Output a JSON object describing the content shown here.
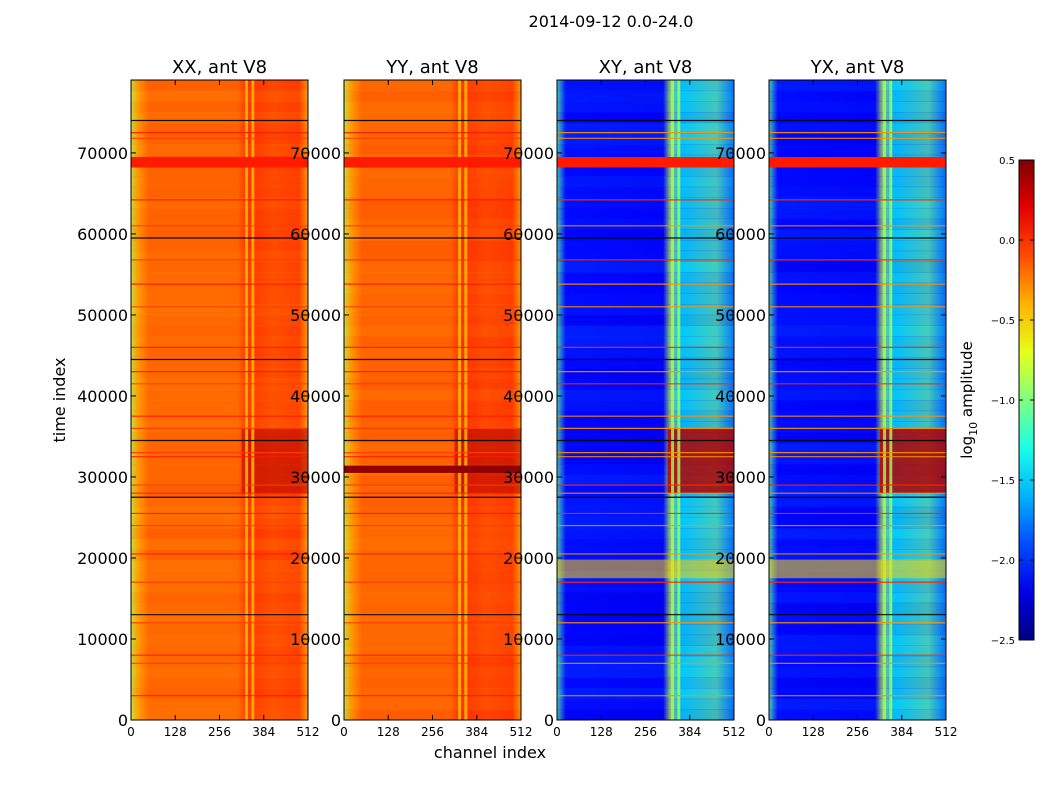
{
  "chart_data": {
    "type": "heatmap",
    "suptitle": "2014-09-12 0.0-24.0",
    "xlabel": "channel index",
    "ylabel": "time index",
    "xlim": [
      0,
      512
    ],
    "ylim": [
      0,
      79000
    ],
    "x_ticks": [
      0,
      128,
      256,
      384,
      512
    ],
    "y_ticks": [
      0,
      10000,
      20000,
      30000,
      40000,
      50000,
      60000,
      70000
    ],
    "panels": [
      {
        "title": "XX, ant V8",
        "base_level": -0.25
      },
      {
        "title": "YY, ant V8",
        "base_level": -0.22
      },
      {
        "title": "XY, ant V8",
        "base_level": -2.05
      },
      {
        "title": "YX, ant V8",
        "base_level": -2.05
      }
    ],
    "colorbar": {
      "label_prefix": "log",
      "label_sub": "10",
      "label_suffix": " amplitude",
      "min": -2.5,
      "max": 0.5,
      "colormap": "jet",
      "ticks": [
        {
          "value": 0.5,
          "label": "0.5"
        },
        {
          "value": 0.0,
          "label": "0.0"
        },
        {
          "value": -0.5,
          "label": "−0.5"
        },
        {
          "value": -1.0,
          "label": "−1.0"
        },
        {
          "value": -1.5,
          "label": "−1.5"
        },
        {
          "value": -2.0,
          "label": "−2.0"
        },
        {
          "value": -2.5,
          "label": "−2.5"
        }
      ]
    },
    "features": {
      "flagged_bands": [
        {
          "t0": 68200,
          "t1": 69500,
          "level": 0.05
        },
        {
          "t0": 30500,
          "t1": 31400,
          "level": 0.45,
          "panels": [
            1
          ]
        },
        {
          "t0": 17500,
          "t1": 19800,
          "level": -0.5,
          "panels": [
            2,
            3
          ]
        }
      ],
      "rfi_lines_time": [
        74000,
        72500,
        71800,
        64200,
        61000,
        59500,
        56800,
        53800,
        51000,
        46000,
        44500,
        43000,
        41500,
        37500,
        36000,
        34500,
        33000,
        32500,
        29000,
        28000,
        27500,
        25500,
        24000,
        20500,
        17000,
        13000,
        12000,
        8000,
        7000,
        3000
      ],
      "bright_region": {
        "c0": 320,
        "c1": 512,
        "t0": 28000,
        "t1": 36000,
        "level": 0.35
      },
      "rfi_channels": [
        330,
        348
      ]
    }
  }
}
